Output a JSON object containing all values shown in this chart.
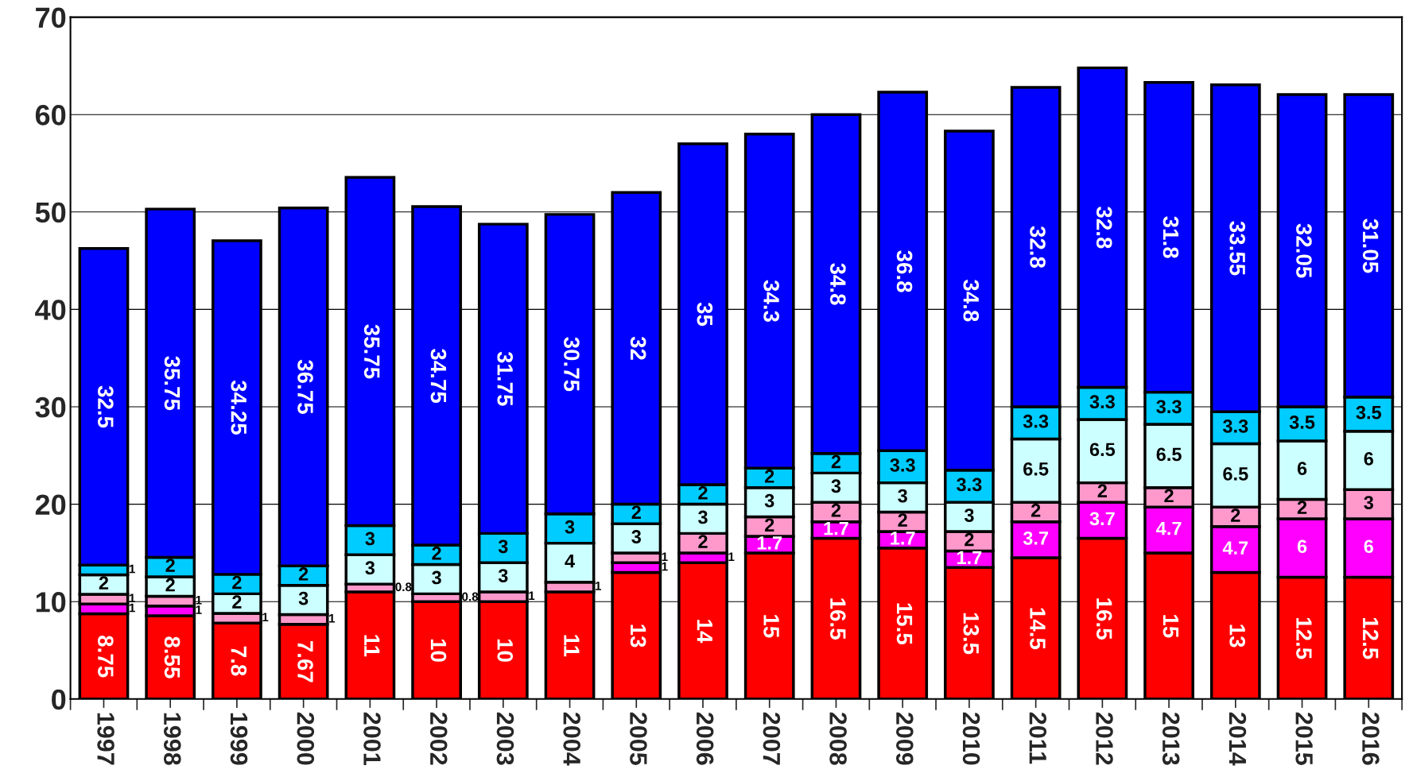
{
  "chart_data": {
    "type": "bar",
    "stacked": true,
    "data_labels": true,
    "grid": "y",
    "legend": false,
    "categories": [
      "1997",
      "1998",
      "1999",
      "2000",
      "2001",
      "2002",
      "2003",
      "2004",
      "2005",
      "2006",
      "2007",
      "2008",
      "2009",
      "2010",
      "2011",
      "2012",
      "2013",
      "2014",
      "2015",
      "2016"
    ],
    "ylim": [
      0,
      70
    ],
    "yticks": [
      0,
      10,
      20,
      30,
      40,
      50,
      60,
      70
    ],
    "series": [
      {
        "color": "#ff0000",
        "values": [
          8.75,
          8.55,
          7.8,
          7.67,
          11,
          10,
          10,
          11,
          13,
          14,
          15,
          16.5,
          15.5,
          13.5,
          14.5,
          16.5,
          15,
          13,
          12.5,
          12.5
        ]
      },
      {
        "color": "#ff00ff",
        "values": [
          1,
          1,
          null,
          null,
          null,
          null,
          null,
          null,
          1,
          1,
          1.7,
          1.7,
          1.7,
          1.7,
          3.7,
          3.7,
          4.7,
          4.7,
          6,
          6
        ]
      },
      {
        "color": "#ff99cc",
        "values": [
          1,
          1,
          1,
          1,
          0.8,
          0.8,
          1,
          1,
          1,
          2,
          2,
          2,
          2,
          2,
          2,
          2,
          2,
          2,
          2,
          3
        ]
      },
      {
        "color": "#ccffff",
        "values": [
          2,
          2,
          2,
          3,
          3,
          3,
          3,
          4,
          3,
          3,
          3,
          3,
          3,
          3,
          6.5,
          6.5,
          6.5,
          6.5,
          6,
          6
        ]
      },
      {
        "color": "#00ccff",
        "values": [
          1,
          2,
          2,
          2,
          3,
          2,
          3,
          3,
          2,
          2,
          2,
          2,
          3.3,
          3.3,
          3.3,
          3.3,
          3.3,
          3.3,
          3.5,
          3.5
        ]
      },
      {
        "color": "#0000ff",
        "values": [
          32.5,
          35.75,
          34.25,
          36.75,
          35.75,
          34.75,
          31.75,
          30.75,
          32,
          35,
          34.3,
          34.8,
          36.8,
          34.8,
          32.8,
          32.8,
          31.8,
          33.55,
          32.05,
          31.05
        ]
      }
    ]
  }
}
